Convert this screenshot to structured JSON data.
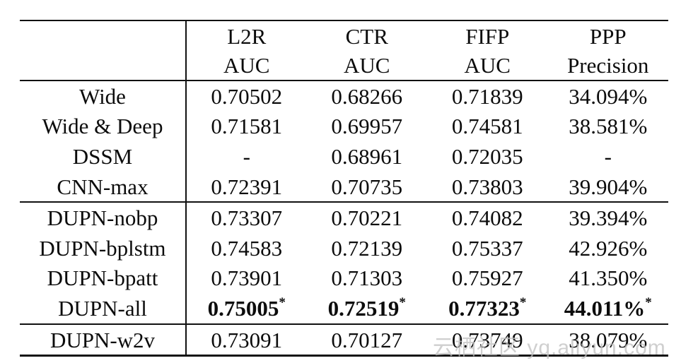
{
  "header": {
    "columns": [
      {
        "line1": "L2R",
        "line2": "AUC"
      },
      {
        "line1": "CTR",
        "line2": "AUC"
      },
      {
        "line1": "FIFP",
        "line2": "AUC"
      },
      {
        "line1": "PPP",
        "line2": "Precision"
      }
    ]
  },
  "rows": [
    {
      "label": "Wide",
      "v0": "0.70502",
      "v1": "0.68266",
      "v2": "0.71839",
      "v3": "34.094%",
      "star": ""
    },
    {
      "label": "Wide & Deep",
      "v0": "0.71581",
      "v1": "0.69957",
      "v2": "0.74581",
      "v3": "38.581%",
      "star": ""
    },
    {
      "label": "DSSM",
      "v0": "-",
      "v1": "0.68961",
      "v2": "0.72035",
      "v3": "-",
      "star": ""
    },
    {
      "label": "CNN-max",
      "v0": "0.72391",
      "v1": "0.70735",
      "v2": "0.73803",
      "v3": "39.904%",
      "star": ""
    },
    {
      "label": "DUPN-nobp",
      "v0": "0.73307",
      "v1": "0.70221",
      "v2": "0.74082",
      "v3": "39.394%",
      "star": ""
    },
    {
      "label": "DUPN-bplstm",
      "v0": "0.74583",
      "v1": "0.72139",
      "v2": "0.75337",
      "v3": "42.926%",
      "star": ""
    },
    {
      "label": "DUPN-bpatt",
      "v0": "0.73901",
      "v1": "0.71303",
      "v2": "0.75927",
      "v3": "41.350%",
      "star": ""
    },
    {
      "label": "DUPN-all",
      "v0": "0.75005",
      "v1": "0.72519",
      "v2": "0.77323",
      "v3": "44.011%",
      "star": "*"
    },
    {
      "label": "DUPN-w2v",
      "v0": "0.73091",
      "v1": "0.70127",
      "v2": "0.73749",
      "v3": "38.079%",
      "star": ""
    }
  ],
  "watermark": "云栖社区 yq.aliyun.com"
}
